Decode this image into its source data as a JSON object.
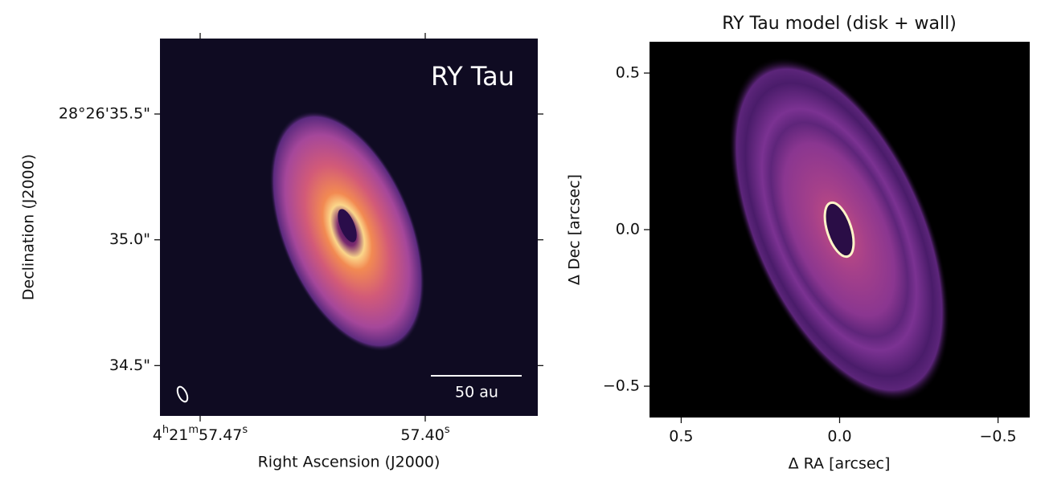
{
  "chart_data": [
    {
      "type": "image",
      "xlabel": "Right Ascension (J2000)",
      "ylabel": "Declination (J2000)",
      "annotation": "RY Tau",
      "scalebar_label": "50 au",
      "xlim": [
        57.4825,
        57.365
      ],
      "ylim": [
        34.3,
        35.8
      ],
      "xticks": [
        {
          "value": 57.47,
          "label": "4h21m57.47s"
        },
        {
          "value": 57.4,
          "label": "57.40s"
        }
      ],
      "yticks": [
        {
          "value": 34.5,
          "label": "34.5\""
        },
        {
          "value": 35.0,
          "label": "35.0\""
        },
        {
          "value": 35.5,
          "label": "28°26'35.5\""
        }
      ]
    },
    {
      "type": "image",
      "title": "RY Tau model (disk + wall)",
      "xlabel": "Δ RA [arcsec]",
      "ylabel": "Δ Dec [arcsec]",
      "xlim": [
        0.6,
        -0.6
      ],
      "ylim": [
        -0.6,
        0.6
      ],
      "xticks": [
        0.5,
        {
          "value": 0,
          "label": "0.0"
        },
        {
          "value": -0.5,
          "label": "−0.5"
        }
      ],
      "yticks": [
        {
          "value": -0.5,
          "label": "−0.5"
        },
        {
          "value": 0,
          "label": "0.0"
        },
        0.5
      ]
    }
  ]
}
